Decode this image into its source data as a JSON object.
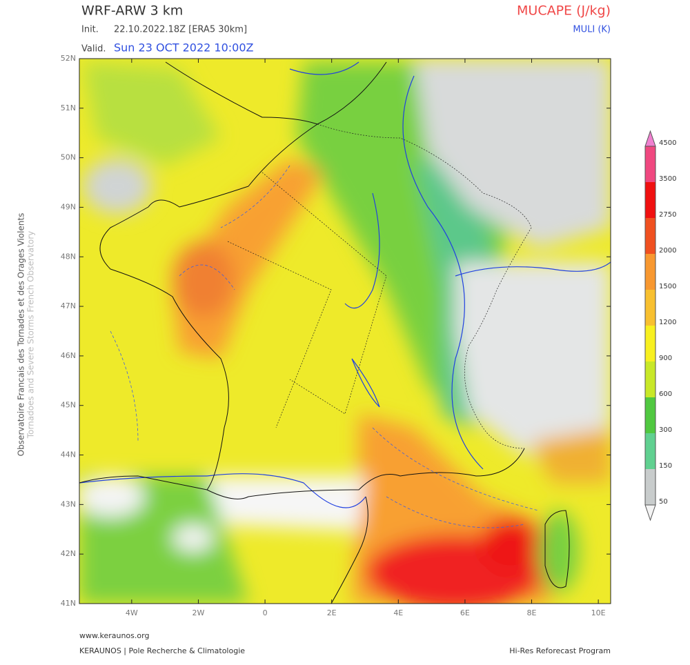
{
  "header": {
    "model": "WRF-ARW 3 km",
    "init_label": "Init.",
    "init_value": "22.10.2022.18Z [ERA5 30km]",
    "valid_label": "Valid.",
    "valid_value": "Sun 23 OCT 2022 10:00Z",
    "field": "MUCAPE (J/kg)",
    "contour_field": "MULI (K)"
  },
  "side_text": {
    "line1": "Observatoire Francais des Tornades et des Orages Violents",
    "line2": "Tornadoes and Severe Storms French Observatory"
  },
  "map": {
    "lon_range": [
      -5.57,
      10.37
    ],
    "lat_range": [
      41,
      52
    ],
    "lat_ticks": [
      {
        "value": 52,
        "label": "52N"
      },
      {
        "value": 51,
        "label": "51N"
      },
      {
        "value": 50,
        "label": "50N"
      },
      {
        "value": 49,
        "label": "49N"
      },
      {
        "value": 48,
        "label": "48N"
      },
      {
        "value": 47,
        "label": "47N"
      },
      {
        "value": 46,
        "label": "46N"
      },
      {
        "value": 45,
        "label": "45N"
      },
      {
        "value": 44,
        "label": "44N"
      },
      {
        "value": 43,
        "label": "43N"
      },
      {
        "value": 42,
        "label": "42N"
      },
      {
        "value": 41,
        "label": "41N"
      }
    ],
    "lon_ticks": [
      {
        "value": -4,
        "label": "4W"
      },
      {
        "value": -2,
        "label": "2W"
      },
      {
        "value": 0,
        "label": "0"
      },
      {
        "value": 2,
        "label": "2E"
      },
      {
        "value": 4,
        "label": "4E"
      },
      {
        "value": 6,
        "label": "6E"
      },
      {
        "value": 8,
        "label": "8E"
      },
      {
        "value": 10,
        "label": "10E"
      }
    ]
  },
  "colorbar": {
    "levels": [
      50,
      150,
      300,
      600,
      900,
      1200,
      1500,
      2000,
      2750,
      3500,
      4500
    ],
    "colors": [
      "#f4f4f4",
      "#c8cccc",
      "#60d090",
      "#50c840",
      "#c8e828",
      "#f8f020",
      "#f8c030",
      "#f89830",
      "#f05020",
      "#f01010",
      "#f04880",
      "#f080d0"
    ]
  },
  "footer": {
    "site": "www.keraunos.org",
    "org": "KERAUNOS | Pole Recherche & Climatologie",
    "program": "Hi-Res Reforecast Program"
  }
}
